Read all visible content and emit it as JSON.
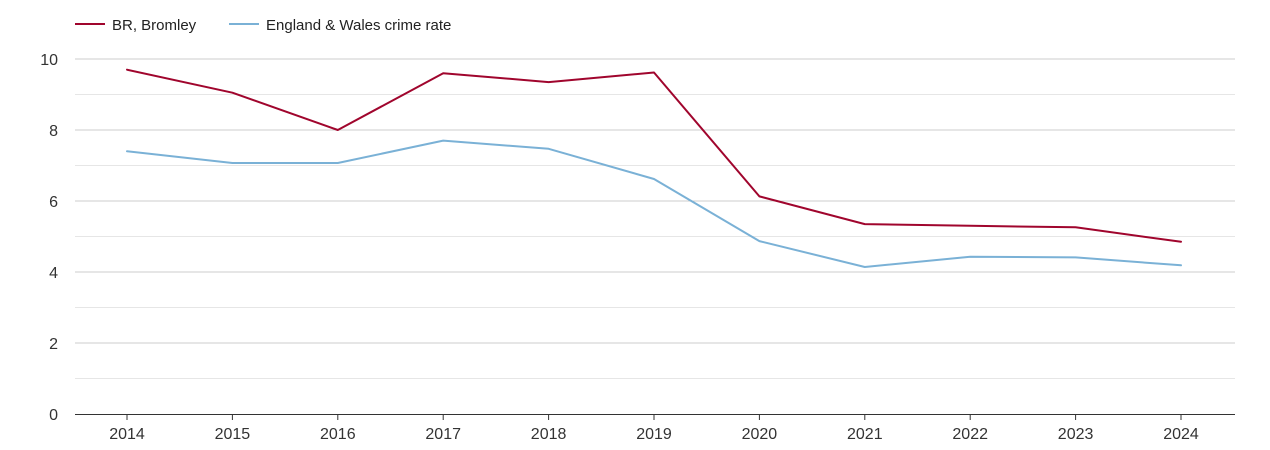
{
  "chart_data": {
    "type": "line",
    "title": "",
    "xlabel": "",
    "ylabel": "",
    "categories": [
      "2014",
      "2015",
      "2016",
      "2017",
      "2018",
      "2019",
      "2020",
      "2021",
      "2022",
      "2023",
      "2024"
    ],
    "ylim": [
      0,
      10
    ],
    "yticks": [
      0,
      2,
      4,
      6,
      8,
      10
    ],
    "grid": true,
    "legend_position": "top-left",
    "series": [
      {
        "name": "BR, Bromley",
        "color": "#a0052d",
        "values": [
          9.7,
          9.05,
          8.0,
          9.6,
          9.35,
          9.62,
          6.13,
          5.35,
          5.3,
          5.26,
          4.85
        ]
      },
      {
        "name": "England & Wales crime rate",
        "color": "#7ab1d6",
        "values": [
          7.4,
          7.07,
          7.07,
          7.7,
          7.47,
          6.62,
          4.87,
          4.14,
          4.43,
          4.41,
          4.19
        ]
      }
    ]
  }
}
